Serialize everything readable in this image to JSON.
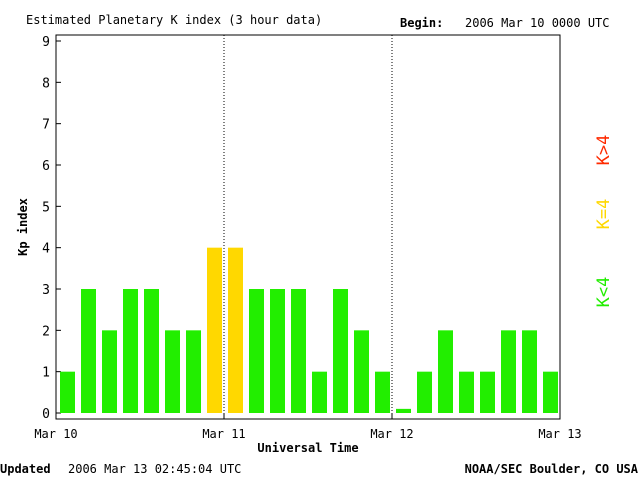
{
  "header": {
    "title": "Estimated Planetary K index (3 hour data)",
    "begin_label": "Begin:",
    "begin_value": "2006 Mar 10 0000 UTC"
  },
  "footer": {
    "updated_label": "Updated",
    "updated_value": "2006 Mar 13 02:45:04 UTC",
    "source": "NOAA/SEC Boulder, CO USA"
  },
  "legend": [
    {
      "label": "K>4",
      "color": "#ff2a00"
    },
    {
      "label": "K=4",
      "color": "#ffd800"
    },
    {
      "label": "K<4",
      "color": "#22ee00"
    }
  ],
  "chart_data": {
    "type": "bar",
    "title": "Estimated Planetary K index (3 hour data)",
    "xlabel": "Universal Time",
    "ylabel": "Kp index",
    "ylim": [
      0,
      9
    ],
    "y_ticks": [
      0,
      1,
      2,
      3,
      4,
      5,
      6,
      7,
      8,
      9
    ],
    "x_ticks": [
      "Mar 10",
      "Mar 11",
      "Mar 12",
      "Mar 13"
    ],
    "day_separators": true,
    "bins_per_day": 8,
    "values": [
      1,
      3,
      2,
      3,
      3,
      2,
      2,
      4,
      4,
      3,
      3,
      3,
      1,
      3,
      2,
      1,
      0.1,
      1,
      2,
      1,
      1,
      2,
      2,
      1
    ],
    "color_rules": {
      "below_4": "#22ee00",
      "equal_4": "#ffd800",
      "above_4": "#ff2a00"
    }
  }
}
